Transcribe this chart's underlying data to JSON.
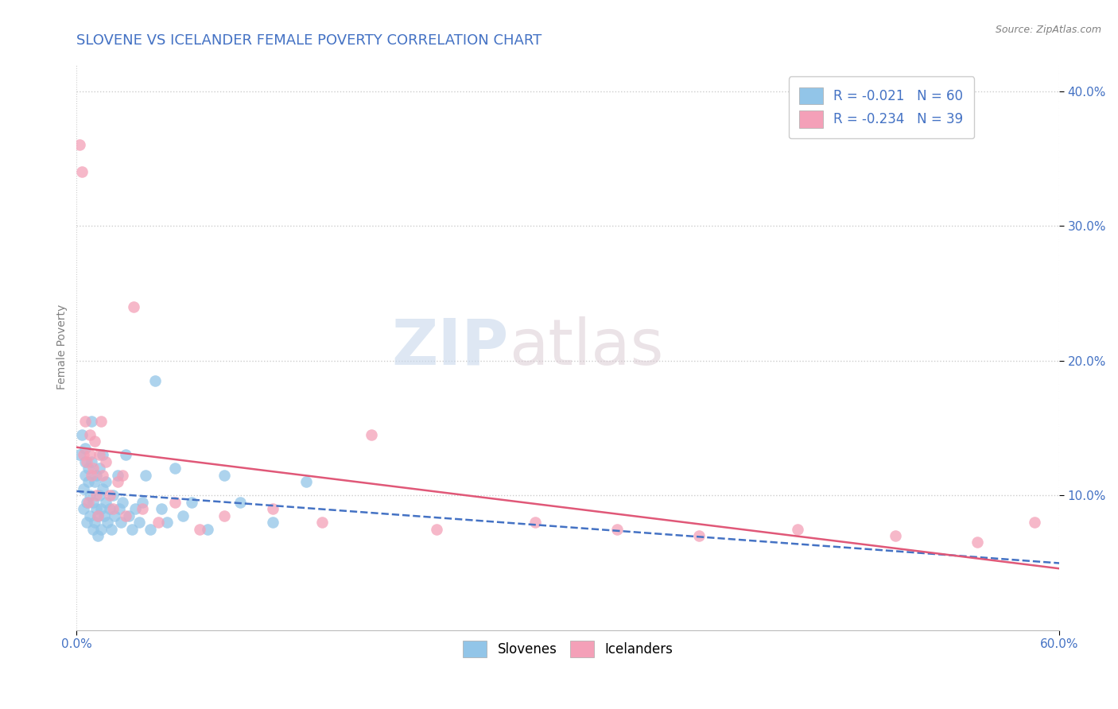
{
  "title": "SLOVENE VS ICELANDER FEMALE POVERTY CORRELATION CHART",
  "source": "Source: ZipAtlas.com",
  "xlim": [
    0.0,
    0.6
  ],
  "ylim": [
    0.0,
    0.42
  ],
  "yticks": [
    0.1,
    0.2,
    0.3,
    0.4
  ],
  "slovene_color": "#92C5E8",
  "icelander_color": "#F4A0B8",
  "slovene_line_color": "#4472C4",
  "icelander_line_color": "#E05878",
  "legend_R1": "R = -0.021",
  "legend_N1": "N = 60",
  "legend_R2": "R = -0.234",
  "legend_N2": "N = 39",
  "label1": "Slovenes",
  "label2": "Icelanders",
  "slovene_x": [
    0.002,
    0.003,
    0.004,
    0.004,
    0.005,
    0.005,
    0.005,
    0.006,
    0.006,
    0.007,
    0.007,
    0.008,
    0.008,
    0.009,
    0.009,
    0.01,
    0.01,
    0.011,
    0.011,
    0.012,
    0.012,
    0.013,
    0.013,
    0.014,
    0.014,
    0.015,
    0.015,
    0.016,
    0.016,
    0.017,
    0.018,
    0.018,
    0.019,
    0.02,
    0.021,
    0.022,
    0.023,
    0.025,
    0.026,
    0.027,
    0.028,
    0.03,
    0.032,
    0.034,
    0.036,
    0.038,
    0.04,
    0.042,
    0.045,
    0.048,
    0.052,
    0.055,
    0.06,
    0.065,
    0.07,
    0.08,
    0.09,
    0.1,
    0.12,
    0.14
  ],
  "slovene_y": [
    0.13,
    0.145,
    0.09,
    0.105,
    0.115,
    0.125,
    0.135,
    0.08,
    0.095,
    0.11,
    0.12,
    0.085,
    0.1,
    0.125,
    0.155,
    0.075,
    0.095,
    0.08,
    0.11,
    0.09,
    0.115,
    0.07,
    0.085,
    0.1,
    0.12,
    0.075,
    0.09,
    0.105,
    0.13,
    0.085,
    0.095,
    0.11,
    0.08,
    0.09,
    0.075,
    0.1,
    0.085,
    0.115,
    0.09,
    0.08,
    0.095,
    0.13,
    0.085,
    0.075,
    0.09,
    0.08,
    0.095,
    0.115,
    0.075,
    0.185,
    0.09,
    0.08,
    0.12,
    0.085,
    0.095,
    0.075,
    0.115,
    0.095,
    0.08,
    0.11
  ],
  "icelander_x": [
    0.002,
    0.003,
    0.004,
    0.005,
    0.006,
    0.007,
    0.008,
    0.008,
    0.009,
    0.01,
    0.011,
    0.012,
    0.013,
    0.014,
    0.015,
    0.016,
    0.018,
    0.02,
    0.022,
    0.025,
    0.028,
    0.03,
    0.035,
    0.04,
    0.05,
    0.06,
    0.075,
    0.09,
    0.12,
    0.15,
    0.18,
    0.22,
    0.28,
    0.33,
    0.38,
    0.44,
    0.5,
    0.55,
    0.585
  ],
  "icelander_y": [
    0.36,
    0.34,
    0.13,
    0.155,
    0.125,
    0.095,
    0.13,
    0.145,
    0.115,
    0.12,
    0.14,
    0.1,
    0.085,
    0.13,
    0.155,
    0.115,
    0.125,
    0.1,
    0.09,
    0.11,
    0.115,
    0.085,
    0.24,
    0.09,
    0.08,
    0.095,
    0.075,
    0.085,
    0.09,
    0.08,
    0.145,
    0.075,
    0.08,
    0.075,
    0.07,
    0.075,
    0.07,
    0.065,
    0.08
  ],
  "watermark_zip": "ZIP",
  "watermark_atlas": "atlas",
  "background_color": "#FFFFFF",
  "grid_color": "#CCCCCC",
  "axis_color": "#BBBBBB",
  "title_color": "#4472C4",
  "tick_color": "#4472C4",
  "title_fontsize": 13,
  "axis_label_fontsize": 10,
  "tick_fontsize": 11
}
